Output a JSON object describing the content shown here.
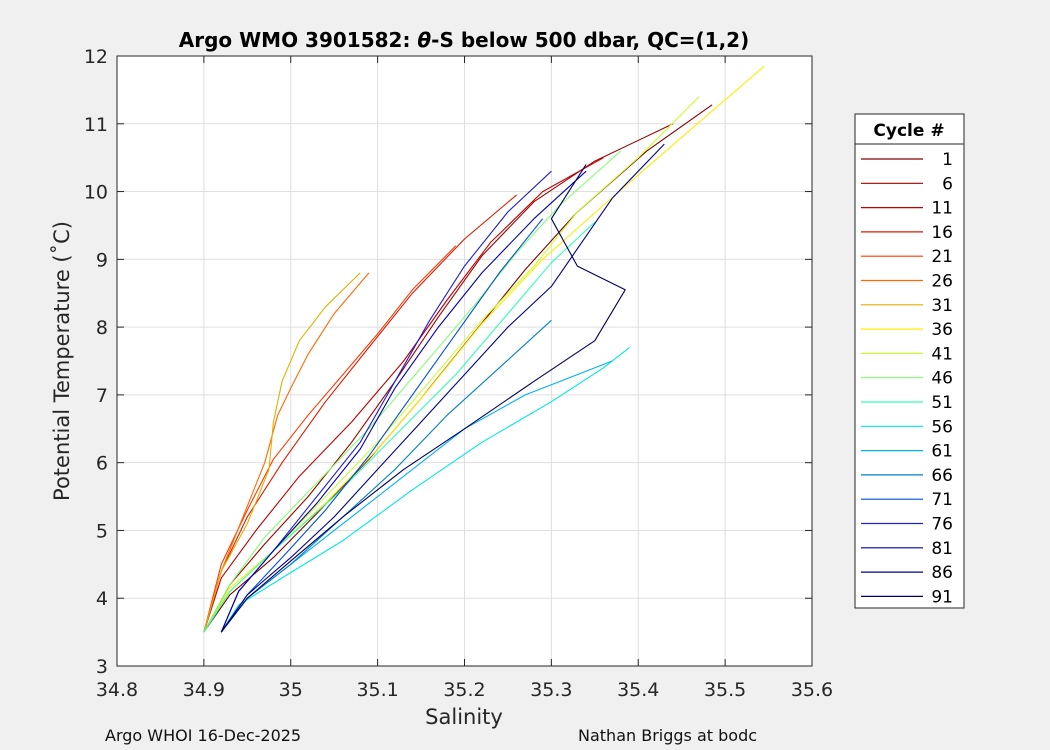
{
  "chart_data": {
    "type": "line",
    "title_pre": "Argo WMO 3901582: ",
    "title_theta": "θ",
    "title_post": "-S below 500 dbar,  QC=(1,2)",
    "xlabel": "Salinity",
    "ylabel": "Potential Temperature (˚C)",
    "xlim": [
      34.8,
      35.6
    ],
    "ylim": [
      3,
      12
    ],
    "xticks": [
      "34.8",
      "34.9",
      "35",
      "35.1",
      "35.2",
      "35.3",
      "35.4",
      "35.5",
      "35.6"
    ],
    "yticks": [
      "3",
      "4",
      "5",
      "6",
      "7",
      "8",
      "9",
      "10",
      "11",
      "12"
    ],
    "grid": true,
    "legend_title": "Cycle #",
    "legend_position": "right",
    "series": [
      {
        "name": "1",
        "color": "#800000",
        "x": [
          34.9,
          34.93,
          34.98,
          35.03,
          35.09,
          35.15,
          35.21,
          35.27,
          35.33,
          35.41,
          35.485
        ],
        "y": [
          3.5,
          4.05,
          4.6,
          5.25,
          6.05,
          6.95,
          7.9,
          8.85,
          9.7,
          10.6,
          11.28
        ]
      },
      {
        "name": "6",
        "color": "#a00000",
        "x": [
          34.9,
          34.93,
          34.97,
          35.02,
          35.07,
          35.12,
          35.17,
          35.22,
          35.28,
          35.35,
          35.44
        ],
        "y": [
          3.5,
          4.2,
          4.8,
          5.5,
          6.3,
          7.2,
          8.15,
          9.05,
          9.85,
          10.45,
          11.0
        ]
      },
      {
        "name": "11",
        "color": "#c00000",
        "x": [
          34.9,
          34.92,
          34.96,
          35.01,
          35.07,
          35.13,
          35.18,
          35.23,
          35.29,
          35.36
        ],
        "y": [
          3.5,
          4.3,
          5.0,
          5.8,
          6.6,
          7.5,
          8.4,
          9.25,
          10.0,
          10.5
        ]
      },
      {
        "name": "16",
        "color": "#df1a00",
        "x": [
          34.9,
          34.92,
          34.95,
          34.99,
          35.04,
          35.09,
          35.14,
          35.2,
          35.26
        ],
        "y": [
          3.5,
          4.4,
          5.2,
          6.0,
          6.9,
          7.7,
          8.5,
          9.3,
          9.95
        ]
      },
      {
        "name": "21",
        "color": "#ff3a00",
        "x": [
          34.9,
          34.92,
          34.95,
          34.98,
          35.02,
          35.06,
          35.1,
          35.14,
          35.19
        ],
        "y": [
          3.5,
          4.5,
          5.3,
          6.05,
          6.7,
          7.3,
          7.9,
          8.55,
          9.2
        ]
      },
      {
        "name": "26",
        "color": "#ff6a00",
        "x": [
          34.9,
          34.92,
          34.945,
          34.97,
          34.985,
          35.0,
          35.02,
          35.05,
          35.09
        ],
        "y": [
          3.5,
          4.4,
          5.2,
          6.0,
          6.7,
          7.1,
          7.6,
          8.2,
          8.8
        ]
      },
      {
        "name": "31",
        "color": "#e0b000",
        "x": [
          34.9,
          34.92,
          34.95,
          34.975,
          34.98,
          34.99,
          35.01,
          35.04,
          35.08
        ],
        "y": [
          3.5,
          4.4,
          5.1,
          5.9,
          6.6,
          7.2,
          7.8,
          8.3,
          8.8
        ]
      },
      {
        "name": "36",
        "color": "#ffee00",
        "x": [
          34.9,
          34.93,
          34.98,
          35.04,
          35.1,
          35.16,
          35.22,
          35.29,
          35.36,
          35.45,
          35.545
        ],
        "y": [
          3.5,
          4.15,
          4.7,
          5.4,
          6.2,
          7.1,
          8.05,
          9.0,
          9.8,
          10.8,
          11.85
        ]
      },
      {
        "name": "41",
        "color": "#c8ff30",
        "x": [
          34.9,
          34.93,
          34.98,
          35.04,
          35.1,
          35.16,
          35.22,
          35.28,
          35.33,
          35.4,
          35.47
        ],
        "y": [
          3.5,
          4.1,
          4.7,
          5.5,
          6.3,
          7.2,
          8.1,
          8.9,
          9.7,
          10.5,
          11.4
        ]
      },
      {
        "name": "46",
        "color": "#80ff70",
        "x": [
          34.9,
          34.93,
          34.97,
          35.03,
          35.09,
          35.15,
          35.21,
          35.26,
          35.31,
          35.38
        ],
        "y": [
          3.5,
          4.2,
          4.9,
          5.7,
          6.5,
          7.4,
          8.3,
          9.1,
          9.8,
          10.6
        ]
      },
      {
        "name": "51",
        "color": "#30ffb0",
        "x": [
          34.9,
          34.93,
          34.98,
          35.05,
          35.12,
          35.19,
          35.25,
          35.3,
          35.35
        ],
        "y": [
          3.5,
          4.1,
          4.7,
          5.5,
          6.4,
          7.3,
          8.2,
          8.95,
          9.55
        ]
      },
      {
        "name": "56",
        "color": "#00e8e8",
        "x": [
          34.92,
          34.94,
          34.99,
          35.06,
          35.14,
          35.22,
          35.3,
          35.36,
          35.39
        ],
        "y": [
          3.5,
          3.9,
          4.3,
          4.85,
          5.6,
          6.3,
          6.9,
          7.4,
          7.7
        ]
      },
      {
        "name": "61",
        "color": "#00b0ff",
        "x": [
          34.92,
          34.95,
          35.0,
          35.06,
          35.13,
          35.2,
          35.27,
          35.33,
          35.37
        ],
        "y": [
          3.5,
          4.0,
          4.5,
          5.1,
          5.8,
          6.5,
          7.0,
          7.3,
          7.5
        ]
      },
      {
        "name": "66",
        "color": "#0080c8",
        "x": [
          34.92,
          34.95,
          35.0,
          35.06,
          35.12,
          35.18,
          35.24,
          35.3
        ],
        "y": [
          3.5,
          4.0,
          4.5,
          5.2,
          5.9,
          6.7,
          7.4,
          8.1
        ]
      },
      {
        "name": "71",
        "color": "#0050e0",
        "x": [
          34.92,
          34.95,
          34.99,
          35.04,
          35.09,
          35.14,
          35.19,
          35.24,
          35.29
        ],
        "y": [
          3.5,
          4.05,
          4.6,
          5.3,
          6.1,
          7.0,
          7.9,
          8.8,
          9.6
        ]
      },
      {
        "name": "76",
        "color": "#2020d0",
        "x": [
          34.92,
          34.94,
          34.98,
          35.03,
          35.08,
          35.12,
          35.16,
          35.2,
          35.25,
          35.3
        ],
        "y": [
          3.5,
          4.1,
          4.7,
          5.5,
          6.3,
          7.2,
          8.1,
          8.9,
          9.7,
          10.3
        ]
      },
      {
        "name": "81",
        "color": "#0000b0",
        "x": [
          34.92,
          34.94,
          34.98,
          35.03,
          35.08,
          35.12,
          35.17,
          35.22,
          35.28,
          35.34
        ],
        "y": [
          3.5,
          4.1,
          4.7,
          5.4,
          6.2,
          7.1,
          8.0,
          8.8,
          9.6,
          10.3
        ]
      },
      {
        "name": "86",
        "color": "#000090",
        "x": [
          34.92,
          34.95,
          35.0,
          35.05,
          35.1,
          35.15,
          35.2,
          35.25,
          35.3,
          35.37,
          35.43
        ],
        "y": [
          3.5,
          4.05,
          4.6,
          5.2,
          5.9,
          6.6,
          7.3,
          8.0,
          8.6,
          9.9,
          10.7
        ]
      },
      {
        "name": "91",
        "color": "#000060",
        "x": [
          34.92,
          34.95,
          35.0,
          35.06,
          35.13,
          35.2,
          35.28,
          35.35,
          35.385,
          35.33,
          35.3,
          35.34
        ],
        "y": [
          3.5,
          4.0,
          4.55,
          5.2,
          5.9,
          6.5,
          7.2,
          7.8,
          8.55,
          8.9,
          9.6,
          10.4
        ]
      }
    ]
  },
  "footer": {
    "left": "Argo WHOI 16-Dec-2025",
    "right": "Nathan Briggs at bodc"
  }
}
